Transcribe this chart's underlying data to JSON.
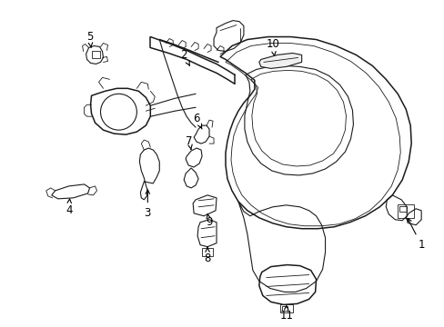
{
  "background_color": "#ffffff",
  "line_color": "#1a1a1a",
  "label_color": "#000000",
  "fig_width": 4.89,
  "fig_height": 3.6,
  "dpi": 100,
  "label_fontsize": 8.5,
  "arrow_color": "#000000",
  "lw_heavy": 1.1,
  "lw_medium": 0.8,
  "lw_thin": 0.6
}
